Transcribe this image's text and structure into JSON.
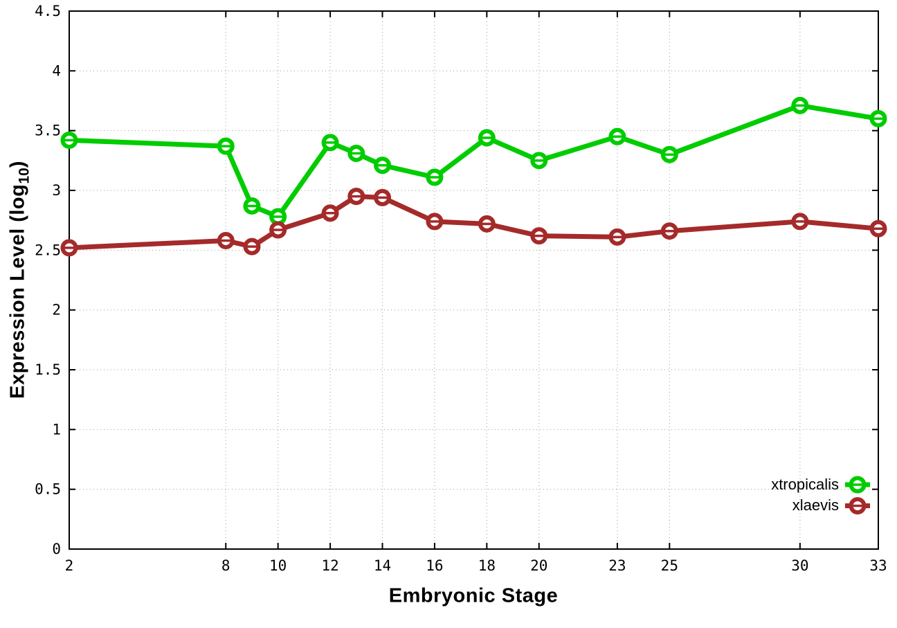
{
  "chart_data": {
    "type": "line",
    "title": "",
    "xlabel": "Embryonic Stage",
    "ylabel": {
      "text": "Expression Level (log",
      "sub": "10",
      "suffix": ")"
    },
    "x": [
      2,
      8,
      9,
      10,
      12,
      13,
      14,
      16,
      18,
      20,
      23,
      25,
      30,
      33
    ],
    "series": [
      {
        "name": "xtropicalis",
        "color": "#00cc00",
        "values": [
          3.42,
          3.37,
          2.87,
          2.78,
          3.4,
          3.31,
          3.21,
          3.11,
          3.44,
          3.25,
          3.45,
          3.3,
          3.71,
          3.6
        ]
      },
      {
        "name": "xlaevis",
        "color": "#a52a2a",
        "values": [
          2.52,
          2.58,
          2.53,
          2.67,
          2.81,
          2.95,
          2.94,
          2.74,
          2.72,
          2.62,
          2.61,
          2.66,
          2.74,
          2.68
        ]
      }
    ],
    "xlim": [
      2,
      33
    ],
    "ylim": [
      0,
      4.5
    ],
    "x_ticks": [
      2,
      8,
      10,
      12,
      14,
      16,
      18,
      20,
      23,
      25,
      30,
      33
    ],
    "y_ticks": [
      0,
      0.5,
      1,
      1.5,
      2,
      2.5,
      3,
      3.5,
      4,
      4.5
    ],
    "grid": true,
    "marker": "open-circle-with-errorbar-cap",
    "legend_position": "bottom-right",
    "colors": {
      "grid": "#999999",
      "axis": "#000000",
      "background": "#ffffff"
    }
  }
}
